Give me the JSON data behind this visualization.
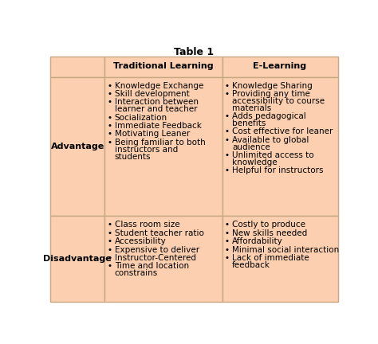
{
  "title": "Table 1",
  "col_headers": [
    "",
    "Traditional Learning",
    "E-Learning"
  ],
  "row_headers": [
    "Advantage",
    "Disadvantage"
  ],
  "advantage_trad": [
    "Knowledge Exchange",
    "Skill development",
    "Interaction between\nlearner and teacher",
    "Socialization",
    "Immediate Feedback",
    "Motivating Leaner",
    "Being familiar to both\ninstructors and\nstudents"
  ],
  "advantage_elearn": [
    "Knowledge Sharing",
    "Providing any time\naccessibility to course\nmaterials",
    "Adds pedagogical\nbenefits",
    "Cost effective for leaner",
    "Available to global\naudience",
    "Unlimited access to\nknowledge",
    "Helpful for instructors"
  ],
  "disadvantage_trad": [
    "Class room size",
    "Student teacher ratio",
    "Accessibility",
    "Expensive to deliver",
    "Instructor-Centered",
    "Time and location\nconstrains"
  ],
  "disadvantage_elearn": [
    "Costly to produce",
    "New skills needed",
    "Affordability",
    "Minimal social interaction",
    "Lack of immediate\nfeedback"
  ],
  "cell_bg": "#FBCFB0",
  "border_color": "#C8A882",
  "text_color": "#000000",
  "title_fontsize": 9,
  "header_fontsize": 8,
  "body_fontsize": 7.5,
  "fig_width": 4.74,
  "fig_height": 4.32,
  "dpi": 100
}
